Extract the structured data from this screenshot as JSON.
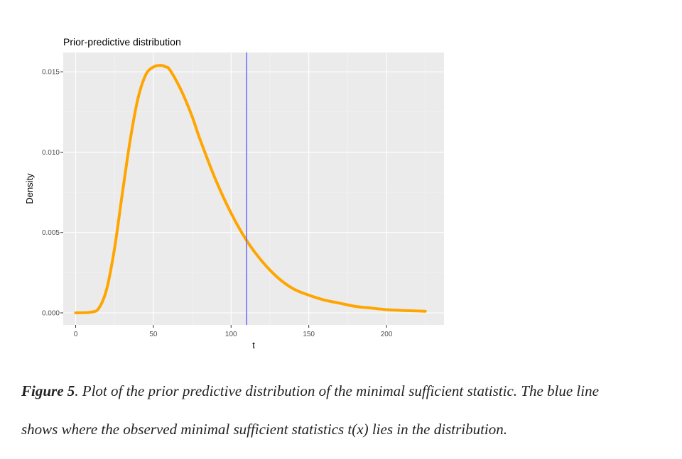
{
  "chart_data": {
    "type": "line",
    "title": "Prior-predictive distribution",
    "xlabel": "t",
    "ylabel": "Density",
    "xlim": [
      -8,
      237
    ],
    "ylim": [
      -0.00075,
      0.0162
    ],
    "x_ticks": [
      0,
      50,
      100,
      150,
      200
    ],
    "x_tick_labels": [
      "0",
      "50",
      "100",
      "150",
      "200"
    ],
    "y_ticks": [
      0.0,
      0.005,
      0.01,
      0.015
    ],
    "y_tick_labels": [
      "0.000",
      "0.005",
      "0.010",
      "0.015"
    ],
    "grid": true,
    "series": [
      {
        "color": "#FFA500",
        "x": [
          0,
          10,
          15,
          20,
          25,
          30,
          35,
          40,
          45,
          50,
          55,
          58,
          60,
          65,
          70,
          75,
          80,
          90,
          100,
          110,
          120,
          130,
          140,
          150,
          160,
          170,
          180,
          190,
          200,
          210,
          225
        ],
        "y": [
          0.0,
          5e-05,
          0.0003,
          0.0015,
          0.004,
          0.0074,
          0.0107,
          0.0133,
          0.0148,
          0.0153,
          0.0154,
          0.0153,
          0.0152,
          0.0144,
          0.0134,
          0.0122,
          0.0108,
          0.0083,
          0.0062,
          0.0045,
          0.0032,
          0.0022,
          0.0015,
          0.0011,
          0.0008,
          0.0006,
          0.0004,
          0.0003,
          0.0002,
          0.00015,
          0.0001
        ]
      }
    ],
    "vline": {
      "x": 110,
      "color": "#6666FF"
    }
  },
  "caption": {
    "figure_label": "Figure 5",
    "line1": ". Plot of the prior predictive distribution of the minimal sufficient statistic. The blue line",
    "line2": "shows where the observed minimal sufficient statistics t(x) lies in the distribution."
  }
}
